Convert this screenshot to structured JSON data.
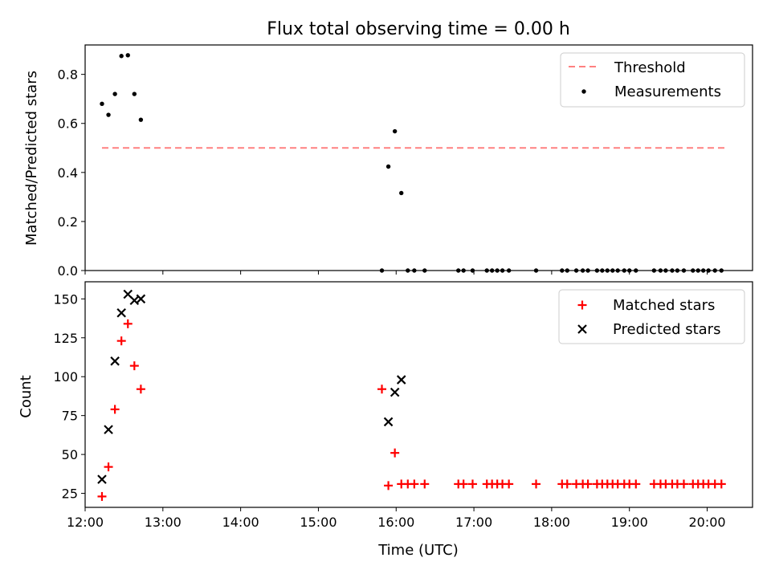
{
  "title": "Flux total observing time = 0.00 h",
  "colors": {
    "threshold": "#ff8080",
    "measurements": "#000000",
    "matched": "#ff0000",
    "predicted": "#000000"
  },
  "chart_data": [
    {
      "type": "scatter",
      "panel": "top",
      "ylabel": "Matched/Predicted stars",
      "xlabel": "",
      "xlim": [
        "12:00",
        "20:35"
      ],
      "ylim": [
        0,
        0.92
      ],
      "y_ticks": [
        "0.0",
        "0.2",
        "0.4",
        "0.6",
        "0.8"
      ],
      "x_ticks": [
        "12:00",
        "13:00",
        "14:00",
        "15:00",
        "16:00",
        "17:00",
        "18:00",
        "19:00",
        "20:00"
      ],
      "legend_position": "top-right",
      "legend": [
        "Threshold",
        "Measurements"
      ],
      "threshold": {
        "name": "Threshold",
        "y": 0.5,
        "x_range": [
          "12:13",
          "20:14"
        ]
      },
      "series": [
        {
          "name": "Measurements",
          "x": [
            "12:13",
            "12:18",
            "12:23",
            "12:28",
            "12:33",
            "12:38",
            "12:43",
            "15:49",
            "15:54",
            "15:59",
            "16:04",
            "16:09",
            "16:14",
            "16:22",
            "16:48",
            "16:52",
            "16:59",
            "17:10",
            "17:14",
            "17:18",
            "17:22",
            "17:27",
            "17:48",
            "18:08",
            "18:12",
            "18:19",
            "18:24",
            "18:28",
            "18:35",
            "18:39",
            "18:43",
            "18:47",
            "18:51",
            "18:56",
            "19:00",
            "19:05",
            "19:19",
            "19:24",
            "19:28",
            "19:33",
            "19:37",
            "19:42",
            "19:49",
            "19:53",
            "19:57",
            "20:01",
            "20:06",
            "20:11"
          ],
          "y": [
            0.68,
            0.635,
            0.72,
            0.875,
            0.878,
            0.72,
            0.615,
            0,
            0.424,
            0.568,
            0.316,
            0,
            0,
            0,
            0,
            0,
            0,
            0,
            0,
            0,
            0,
            0,
            0,
            0,
            0,
            0,
            0,
            0,
            0,
            0,
            0,
            0,
            0,
            0,
            0,
            0,
            0,
            0,
            0,
            0,
            0,
            0,
            0,
            0,
            0,
            0,
            0,
            0
          ]
        }
      ]
    },
    {
      "type": "scatter",
      "panel": "bottom",
      "ylabel": "Count",
      "xlabel": "Time (UTC)",
      "xlim": [
        "12:00",
        "20:35"
      ],
      "ylim": [
        16,
        161
      ],
      "y_ticks": [
        "25",
        "50",
        "75",
        "100",
        "125",
        "150"
      ],
      "x_ticks": [
        "12:00",
        "13:00",
        "14:00",
        "15:00",
        "16:00",
        "17:00",
        "18:00",
        "19:00",
        "20:00"
      ],
      "legend_position": "top-right",
      "legend": [
        "Matched stars",
        "Predicted stars"
      ],
      "series": [
        {
          "name": "Matched stars",
          "marker": "+",
          "x": [
            "12:13",
            "12:18",
            "12:23",
            "12:28",
            "12:33",
            "12:38",
            "12:43",
            "15:49",
            "15:54",
            "15:59",
            "16:04",
            "16:09",
            "16:14",
            "16:22",
            "16:48",
            "16:52",
            "16:59",
            "17:10",
            "17:14",
            "17:18",
            "17:22",
            "17:27",
            "17:48",
            "18:08",
            "18:12",
            "18:19",
            "18:24",
            "18:28",
            "18:35",
            "18:39",
            "18:43",
            "18:47",
            "18:51",
            "18:56",
            "19:00",
            "19:05",
            "19:19",
            "19:24",
            "19:28",
            "19:33",
            "19:37",
            "19:42",
            "19:49",
            "19:53",
            "19:57",
            "20:01",
            "20:06",
            "20:11"
          ],
          "y": [
            23,
            42,
            79,
            123,
            134,
            107,
            92,
            92,
            30,
            51,
            31,
            31,
            31,
            31,
            31,
            31,
            31,
            31,
            31,
            31,
            31,
            31,
            31,
            31,
            31,
            31,
            31,
            31,
            31,
            31,
            31,
            31,
            31,
            31,
            31,
            31,
            31,
            31,
            31,
            31,
            31,
            31,
            31,
            31,
            31,
            31,
            31,
            31
          ]
        },
        {
          "name": "Predicted stars",
          "marker": "x",
          "x": [
            "12:13",
            "12:18",
            "12:23",
            "12:28",
            "12:33",
            "12:38",
            "12:43",
            "15:54",
            "15:59",
            "16:04"
          ],
          "y": [
            34,
            66,
            110,
            141,
            153,
            149,
            150,
            71,
            90,
            98
          ]
        }
      ]
    }
  ]
}
